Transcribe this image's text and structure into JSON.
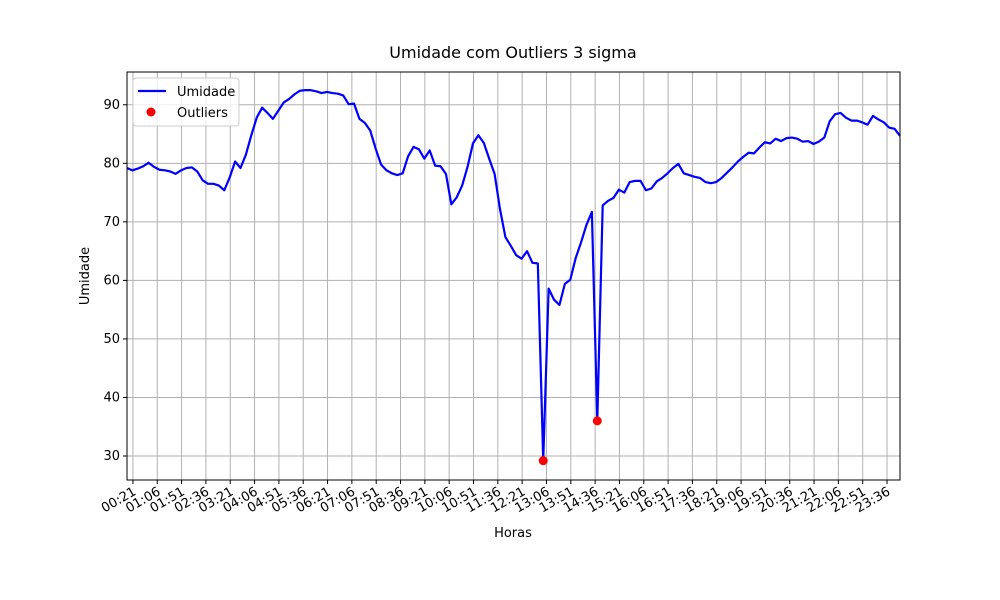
{
  "chart_data": {
    "type": "line",
    "title": "Umidade com Outliers 3 sigma",
    "x_label": "Horas",
    "y_label": "Umidade",
    "x": [
      10,
      20,
      30,
      40,
      50,
      60,
      70,
      80,
      90,
      100,
      110,
      120,
      130,
      140,
      150,
      160,
      170,
      180,
      190,
      200,
      210,
      220,
      230,
      240,
      250,
      260,
      270,
      280,
      290,
      300,
      310,
      320,
      330,
      340,
      350,
      360,
      370,
      380,
      390,
      400,
      410,
      420,
      430,
      440,
      450,
      460,
      470,
      480,
      490,
      500,
      510,
      520,
      530,
      540,
      550,
      560,
      570,
      580,
      590,
      600,
      610,
      620,
      630,
      640,
      650,
      660,
      670,
      680,
      690,
      700,
      710,
      720,
      730,
      740,
      750,
      760,
      770,
      780,
      790,
      800,
      810,
      820,
      830,
      840,
      850,
      860,
      870,
      880,
      890,
      900,
      910,
      920,
      930,
      940,
      950,
      960,
      970,
      980,
      990,
      1000,
      1010,
      1020,
      1030,
      1040,
      1050,
      1060,
      1070,
      1080,
      1090,
      1100,
      1110,
      1120,
      1130,
      1140,
      1150,
      1160,
      1170,
      1180,
      1190,
      1200,
      1210,
      1220,
      1230,
      1240,
      1250,
      1260,
      1270,
      1280,
      1290,
      1300,
      1310,
      1320,
      1330,
      1340,
      1350,
      1360,
      1370,
      1380,
      1390,
      1400,
      1410,
      1420,
      1430,
      1440
    ],
    "series": [
      {
        "name": "Umidade",
        "type": "line",
        "color": "#0000ff",
        "values": [
          79.2,
          78.8,
          79.1,
          79.5,
          80.1,
          79.4,
          78.9,
          78.8,
          78.6,
          78.2,
          78.8,
          79.2,
          79.3,
          78.6,
          77.1,
          76.5,
          76.5,
          76.2,
          75.4,
          77.6,
          80.3,
          79.2,
          81.5,
          84.8,
          87.8,
          89.5,
          88.6,
          87.6,
          89.0,
          90.4,
          91.0,
          91.8,
          92.4,
          92.5,
          92.5,
          92.3,
          92.0,
          92.2,
          92.0,
          91.9,
          91.6,
          90.1,
          90.2,
          87.6,
          86.9,
          85.6,
          82.5,
          79.8,
          78.8,
          78.3,
          78.0,
          78.3,
          81.2,
          82.8,
          82.4,
          80.8,
          82.2,
          79.6,
          79.5,
          78.2,
          73.0,
          74.2,
          76.2,
          79.4,
          83.4,
          84.8,
          83.5,
          80.8,
          78.2,
          72.2,
          67.4,
          65.9,
          64.3,
          63.7,
          65.0,
          63.0,
          62.9,
          29.2,
          58.6,
          56.7,
          55.8,
          59.4,
          60.1,
          63.8,
          66.5,
          69.5,
          71.7,
          36.0,
          72.8,
          73.6,
          74.1,
          75.5,
          75.0,
          76.8,
          77.0,
          77.0,
          75.4,
          75.7,
          76.9,
          77.5,
          78.3,
          79.2,
          79.9,
          78.3,
          78.0,
          77.7,
          77.5,
          76.8,
          76.6,
          76.8,
          77.5,
          78.4,
          79.3,
          80.3,
          81.1,
          81.8,
          81.7,
          82.7,
          83.6,
          83.4,
          84.2,
          83.8,
          84.3,
          84.4,
          84.2,
          83.7,
          83.8,
          83.3,
          83.7,
          84.4,
          87.2,
          88.4,
          88.6,
          87.8,
          87.3,
          87.3,
          87.0,
          86.6,
          88.1,
          87.5,
          87.0,
          86.1,
          85.9,
          84.7
        ]
      },
      {
        "name": "Outliers",
        "type": "scatter",
        "color": "#ff0000",
        "x": [
          780,
          880
        ],
        "values": [
          29.2,
          36.0
        ]
      }
    ],
    "xlim": [
      10,
      1440
    ],
    "ylim": [
      25.9,
      95.6
    ],
    "xticks": [
      {
        "value": 21,
        "label": "00:21"
      },
      {
        "value": 66,
        "label": "01:06"
      },
      {
        "value": 111,
        "label": "01:51"
      },
      {
        "value": 156,
        "label": "02:36"
      },
      {
        "value": 201,
        "label": "03:21"
      },
      {
        "value": 246,
        "label": "04:06"
      },
      {
        "value": 291,
        "label": "04:51"
      },
      {
        "value": 336,
        "label": "05:36"
      },
      {
        "value": 381,
        "label": "06:21"
      },
      {
        "value": 426,
        "label": "07:06"
      },
      {
        "value": 471,
        "label": "07:51"
      },
      {
        "value": 516,
        "label": "08:36"
      },
      {
        "value": 561,
        "label": "09:21"
      },
      {
        "value": 606,
        "label": "10:06"
      },
      {
        "value": 651,
        "label": "10:51"
      },
      {
        "value": 696,
        "label": "11:36"
      },
      {
        "value": 741,
        "label": "12:21"
      },
      {
        "value": 786,
        "label": "13:06"
      },
      {
        "value": 831,
        "label": "13:51"
      },
      {
        "value": 876,
        "label": "14:36"
      },
      {
        "value": 921,
        "label": "15:21"
      },
      {
        "value": 966,
        "label": "16:06"
      },
      {
        "value": 1011,
        "label": "16:51"
      },
      {
        "value": 1056,
        "label": "17:36"
      },
      {
        "value": 1101,
        "label": "18:21"
      },
      {
        "value": 1146,
        "label": "19:06"
      },
      {
        "value": 1191,
        "label": "19:51"
      },
      {
        "value": 1236,
        "label": "20:36"
      },
      {
        "value": 1281,
        "label": "21:21"
      },
      {
        "value": 1326,
        "label": "22:06"
      },
      {
        "value": 1371,
        "label": "22:51"
      },
      {
        "value": 1416,
        "label": "23:36"
      }
    ],
    "yticks": [
      30,
      40,
      50,
      60,
      70,
      80,
      90
    ],
    "grid": true,
    "legend": "upper-left"
  }
}
